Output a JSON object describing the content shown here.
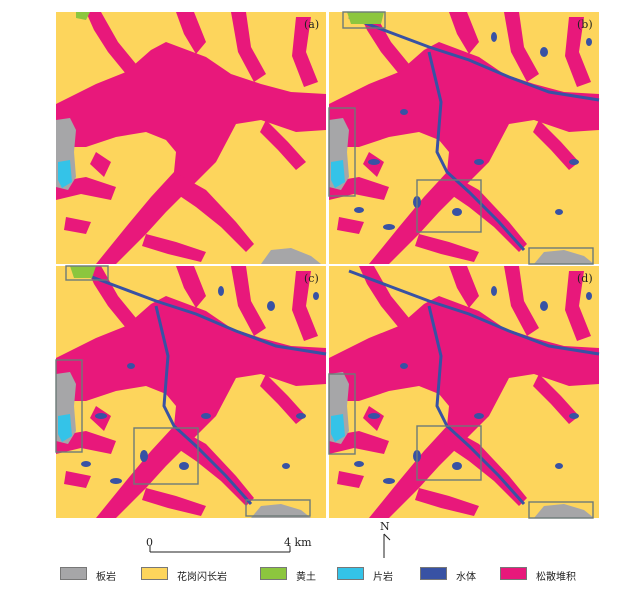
{
  "panels": [
    {
      "id": "a",
      "label": "(a)"
    },
    {
      "id": "b",
      "label": "(b)"
    },
    {
      "id": "c",
      "label": "(c)"
    },
    {
      "id": "d",
      "label": "(d)"
    }
  ],
  "scale_bar": {
    "start": "0",
    "end": "4 km"
  },
  "north_arrow": {
    "label": "N"
  },
  "legend": [
    {
      "key": "slate",
      "label": "板岩",
      "color": "#a6a6a8"
    },
    {
      "key": "granodiorite",
      "label": "花岗闪长岩",
      "color": "#fdd55c"
    },
    {
      "key": "loess",
      "label": "黄土",
      "color": "#8cc63e"
    },
    {
      "key": "schist",
      "label": "片岩",
      "color": "#34c3e8"
    },
    {
      "key": "water",
      "label": "水体",
      "color": "#3852a4"
    },
    {
      "key": "loose_deposit",
      "label": "松散堆积",
      "color": "#e8187b"
    }
  ],
  "colors": {
    "granodiorite": "#fdd55c",
    "loose_deposit": "#e8187b",
    "water": "#3852a4",
    "slate": "#a6a6a8",
    "schist": "#34c3e8",
    "loess": "#8cc63e",
    "highlight_box": "#6d7a78"
  }
}
